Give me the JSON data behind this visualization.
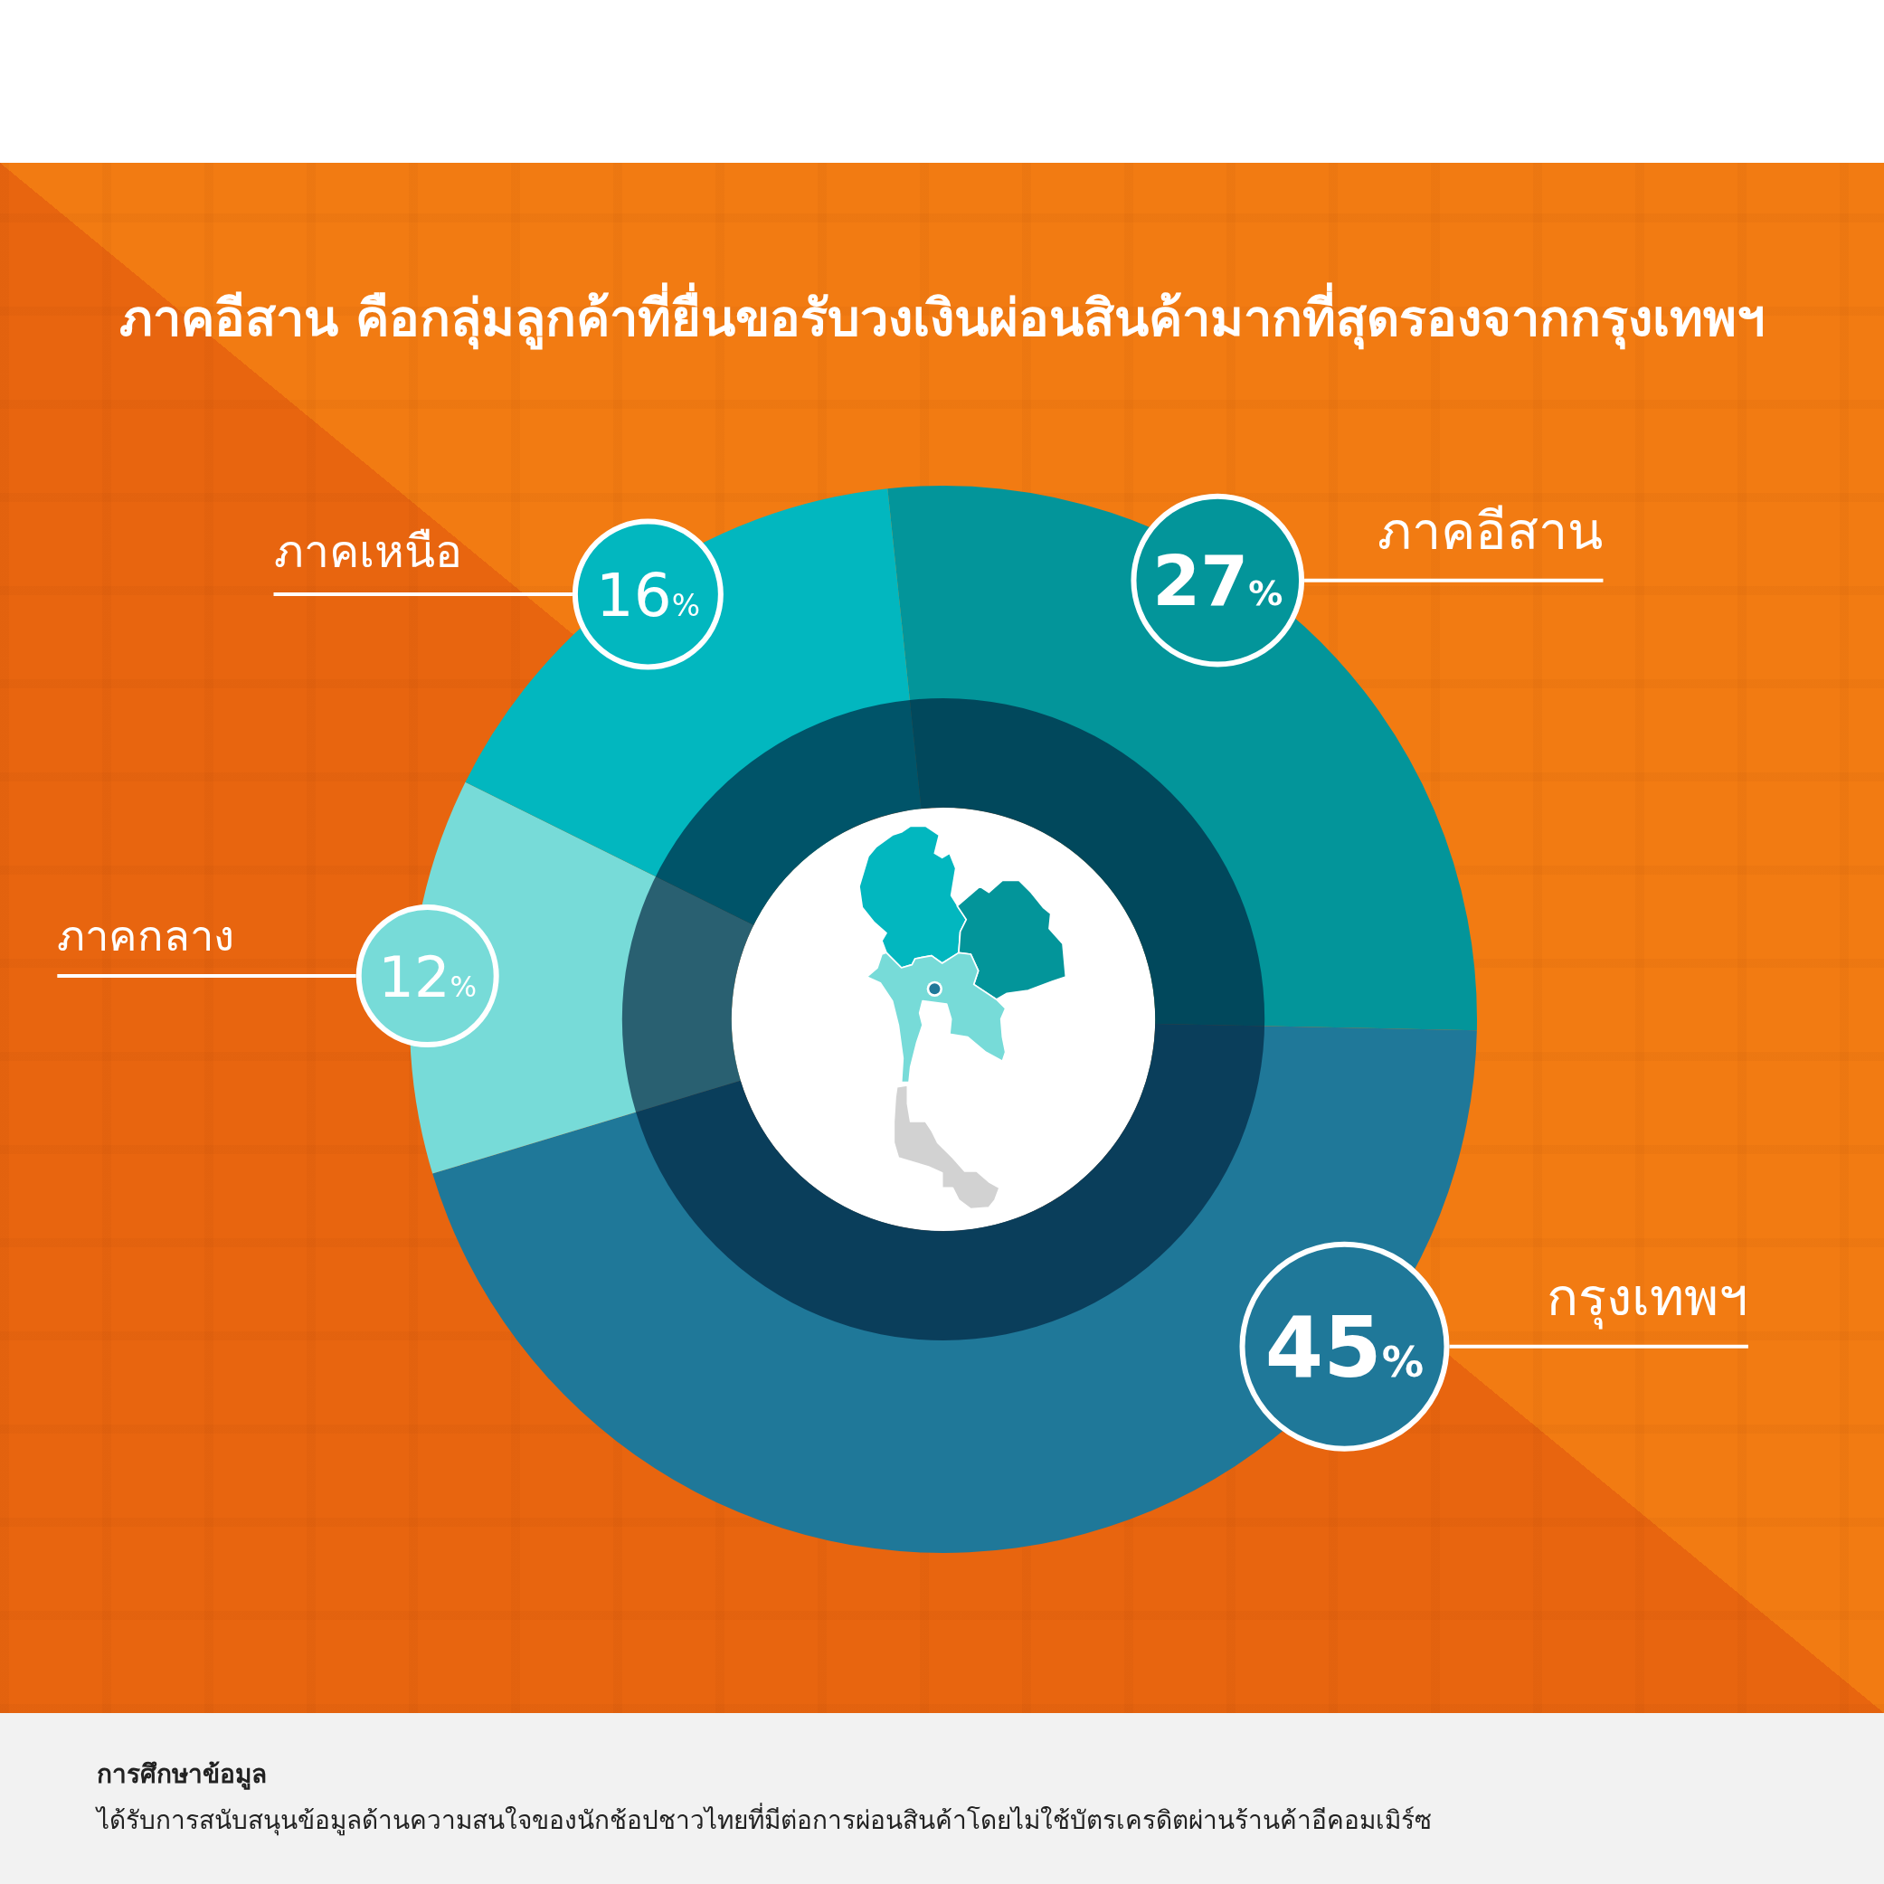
{
  "chart_data": {
    "type": "donut",
    "title": "ภาคอีสาน คือกลุ่มลูกค้าที่ยื่นขอรับวงเงินผ่อนสินค้ามากที่สุดรองจากกรุงเทพฯ",
    "categories": [
      "ภาคอีสาน",
      "กรุงเทพฯ",
      "ภาคกลาง",
      "ภาคเหนือ"
    ],
    "values": [
      27,
      45,
      12,
      16
    ],
    "colors": [
      "#03959a",
      "#1f7899",
      "#77dbd8",
      "#02b7bf"
    ],
    "value_labels": [
      "27%",
      "45%",
      "12%",
      "16%"
    ],
    "annotations": [
      "การศึกษาข้อมูล",
      "ได้รับการสนับสนุนข้อมูลด้านความสนใจของนักช้อปชาวไทยที่มีต่อการผ่อนสินค้าโดยไม่ใช้บัตรเครดิตผ่านร้านค้าอีคอมเมิร์ซ"
    ]
  }
}
